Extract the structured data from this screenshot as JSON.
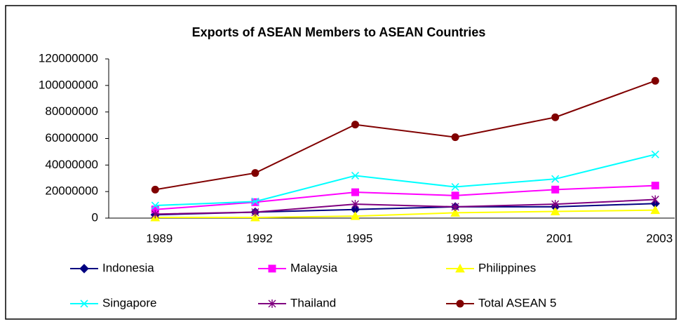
{
  "chart_data": {
    "type": "line",
    "title": "Exports of ASEAN Members to ASEAN Countries",
    "categories": [
      "1989",
      "1992",
      "1995",
      "1998",
      "2001",
      "2003"
    ],
    "ylim": [
      0,
      120000000
    ],
    "yticks": [
      0,
      20000000,
      40000000,
      60000000,
      80000000,
      100000000,
      120000000
    ],
    "series": [
      {
        "name": "Indonesia",
        "color": "#000080",
        "marker": "diamond",
        "values": [
          2500000,
          4500000,
          6500000,
          8500000,
          8500000,
          11000000
        ]
      },
      {
        "name": "Malaysia",
        "color": "#ff00ff",
        "marker": "square",
        "values": [
          6500000,
          12000000,
          19500000,
          17000000,
          21500000,
          24500000
        ]
      },
      {
        "name": "Philippines",
        "color": "#ffff00",
        "marker": "triangle",
        "values": [
          500000,
          500000,
          1500000,
          4000000,
          5000000,
          6000000
        ]
      },
      {
        "name": "Singapore",
        "color": "#00ffff",
        "marker": "x",
        "values": [
          9500000,
          12500000,
          32000000,
          23500000,
          29500000,
          48000000
        ]
      },
      {
        "name": "Thailand",
        "color": "#800080",
        "marker": "star",
        "values": [
          3000000,
          4500000,
          10500000,
          8500000,
          10500000,
          14000000
        ]
      },
      {
        "name": "Total ASEAN 5",
        "color": "#800000",
        "marker": "circle",
        "values": [
          21500000,
          34000000,
          70500000,
          61000000,
          76000000,
          103500000
        ]
      }
    ]
  }
}
